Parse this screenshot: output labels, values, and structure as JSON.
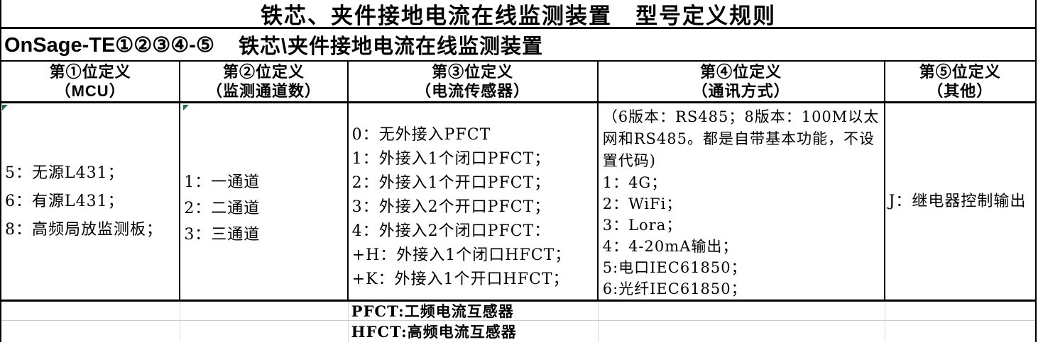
{
  "title": "铁芯、夹件接地电流在线监测装置　型号定义规则",
  "model_row": {
    "model": "OnSage-TE①②③④-⑤",
    "description": "铁芯\\夹件接地电流在线监测装置"
  },
  "columns": [
    {
      "header_line1": "第①位定义",
      "header_line2": "（MCU）",
      "items": [
        "5：无源L431；",
        "6：有源L431；",
        "8：高频局放监测板；"
      ]
    },
    {
      "header_line1": "第②位定义",
      "header_line2": "（监测通道数）",
      "items": [
        "1：一通道",
        "2：二通道",
        "3：三通道"
      ]
    },
    {
      "header_line1": "第③位定义",
      "header_line2": "（电流传感器）",
      "items": [
        "0：无外接入PFCT",
        "1：外接入1个闭口PFCT；",
        "2：外接入1个开口PFCT；",
        "3：外接入2个开口PFCT；",
        "4：外接入2个闭口PFCT：",
        "+H：外接入1个闭口HFCT；",
        "+K：外接入1个开口HFCT；"
      ]
    },
    {
      "header_line1": "第④位定义",
      "header_line2": "（通讯方式）",
      "note": "（6版本：RS485；8版本：100M以太网和RS485。都是自带基本功能，不设置代码)",
      "items": [
        "1：4G；",
        "2：WiFi；",
        "3：Lora；",
        "4：4-20mA输出；",
        "5:电口IEC61850；",
        "6:光纤IEC61850；"
      ]
    },
    {
      "header_line1": "第⑤位定义",
      "header_line2": "（其他）",
      "items": [
        "J：继电器控制输出"
      ]
    }
  ],
  "footnotes": [
    "PFCT:工频电流互感器",
    "HFCT:高频电流互感器"
  ],
  "colors": {
    "border": "#000000",
    "gridline": "#c9c9c9",
    "error_triangle": "#217346",
    "background": "#ffffff",
    "text": "#000000"
  }
}
